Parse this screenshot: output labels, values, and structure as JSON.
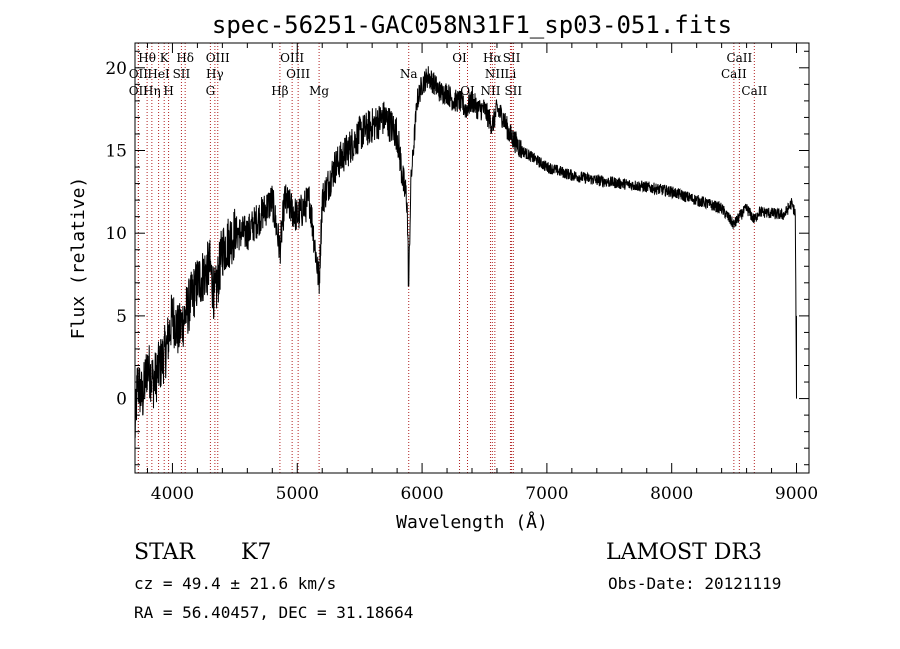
{
  "chart_data": {
    "type": "line",
    "title": "spec-56251-GAC058N31F1_sp03-051.fits",
    "xlabel": "Wavelength (Å)",
    "ylabel": "Flux (relative)",
    "xlim": [
      3700,
      9100
    ],
    "ylim": [
      -4.5,
      21.5
    ],
    "x_ticks": [
      4000,
      5000,
      6000,
      7000,
      8000,
      9000
    ],
    "y_ticks": [
      0,
      5,
      10,
      15,
      20
    ],
    "line_color": "#000000",
    "marker_color": "#b22222",
    "spectrum_anchor": {
      "x": [
        3700,
        3720,
        3760,
        3800,
        3850,
        3900,
        3950,
        4000,
        4050,
        4100,
        4200,
        4300,
        4340,
        4400,
        4500,
        4600,
        4700,
        4800,
        4861,
        4900,
        5000,
        5100,
        5175,
        5200,
        5300,
        5400,
        5500,
        5600,
        5700,
        5800,
        5850,
        5880,
        5893,
        5910,
        5930,
        5960,
        6000,
        6050,
        6100,
        6150,
        6200,
        6250,
        6300,
        6350,
        6400,
        6450,
        6500,
        6563,
        6600,
        6650,
        6700,
        6750,
        6800,
        6900,
        7000,
        7200,
        7400,
        7600,
        7800,
        8000,
        8200,
        8400,
        8498,
        8542,
        8600,
        8662,
        8700,
        8800,
        8900,
        8960,
        8990,
        9000
      ],
      "y": [
        -2,
        1,
        0,
        2,
        1,
        2,
        3,
        5,
        4,
        5,
        7,
        8,
        6,
        9,
        10,
        10,
        11,
        12,
        9,
        12,
        11,
        12,
        7,
        12,
        14,
        15,
        16,
        16.5,
        17,
        16,
        13,
        12,
        6.5,
        13,
        15,
        18,
        19,
        19.5,
        19,
        18.5,
        18.5,
        18,
        18,
        17.5,
        18,
        17.5,
        17.5,
        16.5,
        17.5,
        17,
        16,
        15.5,
        15,
        14.5,
        14,
        13.5,
        13.2,
        13,
        12.8,
        12.5,
        12,
        11.5,
        10.5,
        11,
        11.5,
        10.8,
        11.3,
        11.2,
        11.1,
        11.8,
        11.2,
        0
      ]
    },
    "lines": [
      {
        "label": "Hθ",
        "wavelength": 3797,
        "row": 1
      },
      {
        "label": "K",
        "wavelength": 3934,
        "row": 1
      },
      {
        "label": "Hδ",
        "wavelength": 4102,
        "row": 1
      },
      {
        "label": "OIII",
        "wavelength": 4363,
        "row": 1
      },
      {
        "label": "OIII",
        "wavelength": 4959,
        "row": 1
      },
      {
        "label": "OI",
        "wavelength": 6300,
        "row": 1
      },
      {
        "label": "Hα",
        "wavelength": 6563,
        "row": 1
      },
      {
        "label": "SII",
        "wavelength": 6717,
        "row": 1
      },
      {
        "label": "CaII",
        "wavelength": 8542,
        "row": 1
      },
      {
        "label": "OII",
        "wavelength": 3727,
        "row": 2
      },
      {
        "label": "HeI",
        "wavelength": 3889,
        "row": 2
      },
      {
        "label": "SII",
        "wavelength": 4072,
        "row": 2
      },
      {
        "label": "Hγ",
        "wavelength": 4340,
        "row": 2
      },
      {
        "label": "OIII",
        "wavelength": 5007,
        "row": 2
      },
      {
        "label": "Na",
        "wavelength": 5893,
        "row": 2
      },
      {
        "label": "NII",
        "wavelength": 6583,
        "row": 2
      },
      {
        "label": "Li",
        "wavelength": 6708,
        "row": 2
      },
      {
        "label": "CaII",
        "wavelength": 8498,
        "row": 2
      },
      {
        "label": "OII",
        "wavelength": 3727,
        "row": 3
      },
      {
        "label": "Hη",
        "wavelength": 3835,
        "row": 3
      },
      {
        "label": "H",
        "wavelength": 3969,
        "row": 3
      },
      {
        "label": "G",
        "wavelength": 4304,
        "row": 3
      },
      {
        "label": "Hβ",
        "wavelength": 4861,
        "row": 3
      },
      {
        "label": "Mg",
        "wavelength": 5175,
        "row": 3
      },
      {
        "label": "OI",
        "wavelength": 6364,
        "row": 3
      },
      {
        "label": "NII",
        "wavelength": 6548,
        "row": 3
      },
      {
        "label": "SII",
        "wavelength": 6731,
        "row": 3
      },
      {
        "label": "CaII",
        "wavelength": 8662,
        "row": 3
      }
    ]
  },
  "info": {
    "object_class": "STAR",
    "subclass": "K7",
    "survey": "LAMOST DR3",
    "cz": "cz = 49.4 ± 21.6 km/s",
    "obs_date": "Obs-Date: 20121119",
    "coords": "RA =  56.40457, DEC =  31.18664"
  }
}
